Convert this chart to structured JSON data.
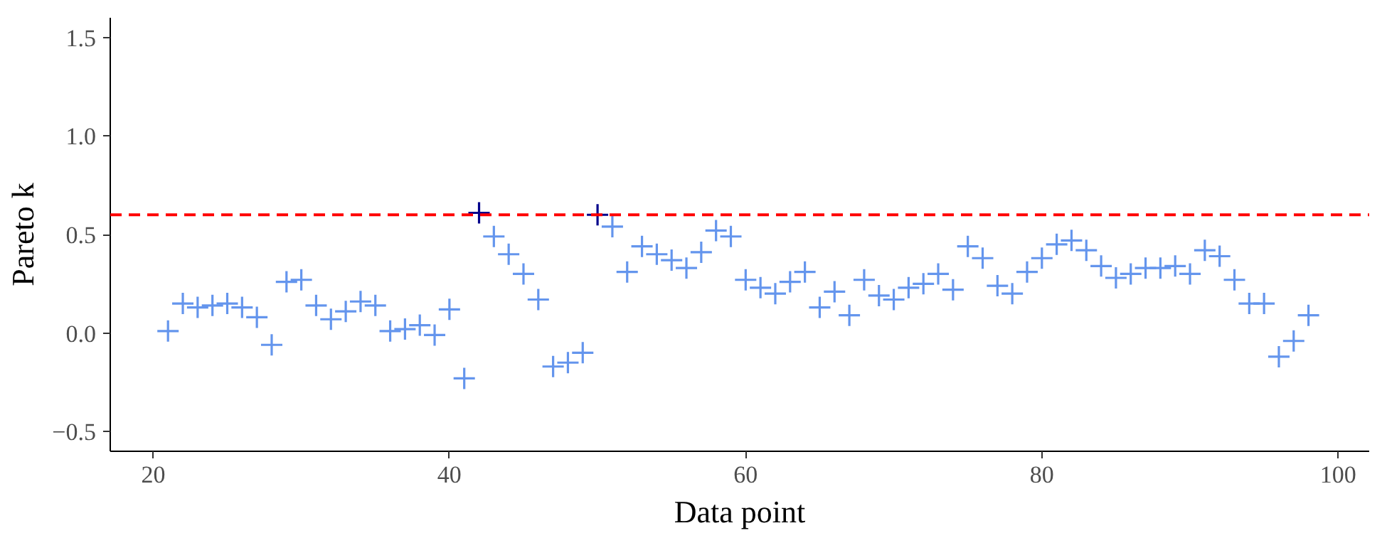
{
  "chart_data": {
    "type": "scatter",
    "xlabel": "Data point",
    "ylabel": "Pareto k",
    "marker": "cross",
    "grid": false,
    "xlim": [
      17.1,
      102.1
    ],
    "ylim": [
      -0.6,
      1.6
    ],
    "xticks": [
      20,
      40,
      60,
      80,
      100
    ],
    "yticks": [
      {
        "value": -0.5,
        "label": "−0.5"
      },
      {
        "value": 0,
        "label": "0.0"
      },
      {
        "value": 0.5,
        "label": "0.5"
      },
      {
        "value": 1,
        "label": "1.0"
      },
      {
        "value": 1.5,
        "label": "1.5"
      }
    ],
    "series": [
      {
        "color": "#6495ed",
        "x": [
          21,
          22,
          23,
          24,
          25,
          26,
          27,
          28,
          29,
          30,
          31,
          32,
          33,
          34,
          35,
          36,
          37,
          38,
          39,
          40,
          41,
          43,
          44,
          45,
          46,
          47,
          48,
          49,
          51,
          52,
          53,
          54,
          55,
          56,
          57,
          58,
          59,
          60,
          61,
          62,
          63,
          64,
          65,
          66,
          67,
          68,
          69,
          70,
          71,
          72,
          73,
          74,
          75,
          76,
          77,
          78,
          79,
          80,
          81,
          82,
          83,
          84,
          85,
          86,
          87,
          88,
          89,
          90,
          91,
          92,
          93,
          94,
          95,
          96,
          97,
          98
        ],
        "values": [
          0.01,
          0.15,
          0.13,
          0.14,
          0.15,
          0.13,
          0.08,
          -0.06,
          0.26,
          0.27,
          0.14,
          0.07,
          0.11,
          0.16,
          0.14,
          0.01,
          0.02,
          0.04,
          -0.01,
          0.12,
          -0.23,
          0.49,
          0.4,
          0.3,
          0.17,
          -0.17,
          -0.15,
          -0.1,
          0.54,
          0.31,
          0.44,
          0.4,
          0.37,
          0.33,
          0.41,
          0.52,
          0.49,
          0.27,
          0.23,
          0.2,
          0.26,
          0.31,
          0.13,
          0.21,
          0.09,
          0.27,
          0.19,
          0.17,
          0.23,
          0.25,
          0.3,
          0.22,
          0.44,
          0.38,
          0.24,
          0.2,
          0.31,
          0.38,
          0.45,
          0.47,
          0.42,
          0.34,
          0.28,
          0.3,
          0.33,
          0.33,
          0.34,
          0.3,
          0.42,
          0.39,
          0.27,
          0.15,
          0.15,
          -0.12,
          -0.04,
          0.09
        ]
      },
      {
        "color": "#00008b",
        "x": [
          42,
          50
        ],
        "values": [
          0.61,
          0.6
        ]
      }
    ],
    "ref_lines": [
      {
        "axis": "y",
        "value": 0.6,
        "color": "#ff0000",
        "line_style": "dashed"
      }
    ]
  }
}
